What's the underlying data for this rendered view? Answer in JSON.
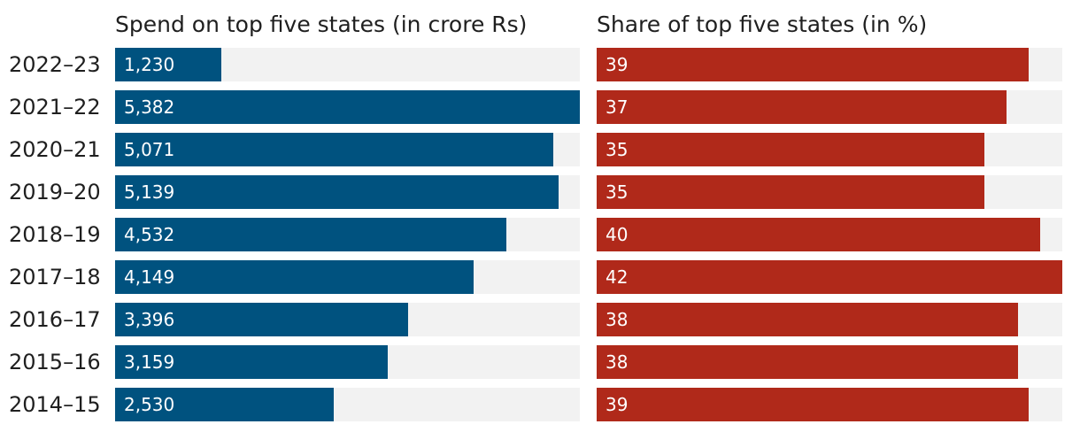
{
  "chart_data": [
    {
      "type": "bar",
      "orientation": "horizontal",
      "title": "Spend on top five states (in crore Rs)",
      "categories": [
        "2022-23",
        "2021-22",
        "2020-21",
        "2019-20",
        "2018-19",
        "2017-18",
        "2016-17",
        "2015-16",
        "2014-15"
      ],
      "values": [
        1230,
        5382,
        5071,
        5139,
        4532,
        4149,
        3396,
        3159,
        2530
      ],
      "value_labels": [
        "1,230",
        "5,382",
        "5,071",
        "5,139",
        "4,532",
        "4,149",
        "3,396",
        "3,159",
        "2,530"
      ],
      "xlim": [
        0,
        5382
      ],
      "color": "#00527f",
      "track_color": "#f2f2f2"
    },
    {
      "type": "bar",
      "orientation": "horizontal",
      "title": "Share of top five states (in %)",
      "categories": [
        "2022-23",
        "2021-22",
        "2020-21",
        "2019-20",
        "2018-19",
        "2017-18",
        "2016-17",
        "2015-16",
        "2014-15"
      ],
      "values": [
        39,
        37,
        35,
        35,
        40,
        42,
        38,
        38,
        39
      ],
      "value_labels": [
        "39",
        "37",
        "35",
        "35",
        "40",
        "42",
        "38",
        "38",
        "39"
      ],
      "xlim": [
        0,
        42
      ],
      "color": "#b0291a",
      "track_color": "#f2f2f2"
    }
  ]
}
